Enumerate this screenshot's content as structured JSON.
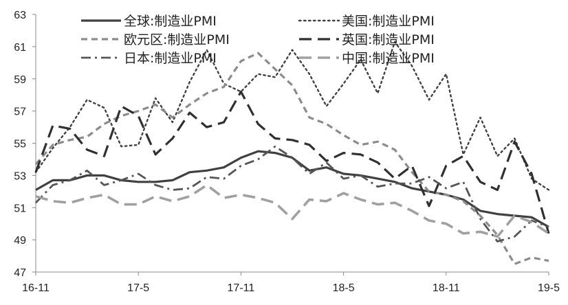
{
  "chart_data": {
    "type": "line",
    "title": "",
    "xlabel": "",
    "ylabel": "",
    "ylim": [
      47,
      63
    ],
    "yticks": [
      47,
      49,
      51,
      53,
      55,
      57,
      59,
      61,
      63
    ],
    "grid": false,
    "legend_position": "top",
    "xtick_labels": [
      "16-11",
      "17-5",
      "17-11",
      "18-5",
      "18-11",
      "19-5"
    ],
    "x": [
      "2016-11",
      "2016-12",
      "2017-01",
      "2017-02",
      "2017-03",
      "2017-04",
      "2017-05",
      "2017-06",
      "2017-07",
      "2017-08",
      "2017-09",
      "2017-10",
      "2017-11",
      "2017-12",
      "2018-01",
      "2018-02",
      "2018-03",
      "2018-04",
      "2018-05",
      "2018-06",
      "2018-07",
      "2018-08",
      "2018-09",
      "2018-10",
      "2018-11",
      "2018-12",
      "2019-01",
      "2019-02",
      "2019-03",
      "2019-04",
      "2019-05"
    ],
    "series": [
      {
        "name": "全球:制造业PMI",
        "color": "#404040",
        "dash": "solid",
        "width": 3.2,
        "values": [
          52.1,
          52.7,
          52.7,
          53.0,
          53.0,
          52.7,
          52.6,
          52.6,
          52.7,
          53.2,
          53.3,
          53.5,
          54.1,
          54.5,
          54.4,
          54.1,
          53.3,
          53.5,
          53.1,
          53.0,
          52.8,
          52.6,
          52.2,
          52.0,
          51.8,
          51.5,
          50.8,
          50.6,
          50.5,
          50.4,
          49.8
        ]
      },
      {
        "name": "美国:制造业PMI",
        "color": "#404040",
        "dash": "dot",
        "width": 2.4,
        "values": [
          53.2,
          54.7,
          56.0,
          57.7,
          57.2,
          54.8,
          54.9,
          57.8,
          56.3,
          58.8,
          60.8,
          58.7,
          58.2,
          59.3,
          59.1,
          60.8,
          59.3,
          57.3,
          58.7,
          60.2,
          58.1,
          61.3,
          59.8,
          57.7,
          59.3,
          54.3,
          56.6,
          54.2,
          55.3,
          52.8,
          52.1
        ]
      },
      {
        "name": "欧元区:制造业PMI",
        "color": "#8c8c8c",
        "dash": "dash",
        "width": 3.2,
        "values": [
          53.7,
          54.9,
          55.2,
          55.4,
          56.2,
          56.7,
          57.0,
          57.4,
          56.6,
          57.4,
          58.1,
          58.5,
          60.1,
          60.6,
          59.6,
          58.6,
          56.6,
          56.2,
          55.5,
          54.9,
          55.1,
          54.6,
          53.2,
          52.0,
          51.8,
          51.4,
          50.5,
          49.3,
          47.5,
          47.9,
          47.7
        ]
      },
      {
        "name": "英国:制造业PMI",
        "color": "#303030",
        "dash": "longdash",
        "width": 3.2,
        "values": [
          53.2,
          56.1,
          55.9,
          54.6,
          54.2,
          57.3,
          56.7,
          54.3,
          55.3,
          56.9,
          56.0,
          56.3,
          58.2,
          56.2,
          55.3,
          55.2,
          54.9,
          53.9,
          54.4,
          54.3,
          53.8,
          52.8,
          53.6,
          51.1,
          53.6,
          54.2,
          52.6,
          52.1,
          55.1,
          53.1,
          49.4
        ]
      },
      {
        "name": "日本:制造业PMI",
        "color": "#555555",
        "dash": "dashdot",
        "width": 2.8,
        "values": [
          51.3,
          52.4,
          52.7,
          53.3,
          52.4,
          52.7,
          53.1,
          52.4,
          52.1,
          52.2,
          52.9,
          52.8,
          53.6,
          54.0,
          54.8,
          54.1,
          53.1,
          53.8,
          52.8,
          53.0,
          52.3,
          52.5,
          52.5,
          52.9,
          52.2,
          52.6,
          50.3,
          48.9,
          49.2,
          50.2,
          49.8
        ]
      },
      {
        "name": "中国:制造业PMI",
        "color": "#a0a0a0",
        "dash": "longdash",
        "width": 3.6,
        "values": [
          51.7,
          51.4,
          51.3,
          51.6,
          51.8,
          51.2,
          51.2,
          51.7,
          51.4,
          51.7,
          52.4,
          51.6,
          51.8,
          51.6,
          51.3,
          50.3,
          51.5,
          51.4,
          51.9,
          51.5,
          51.2,
          51.3,
          50.8,
          50.2,
          50.0,
          49.4,
          49.5,
          49.2,
          50.5,
          50.1,
          49.4
        ]
      }
    ]
  }
}
